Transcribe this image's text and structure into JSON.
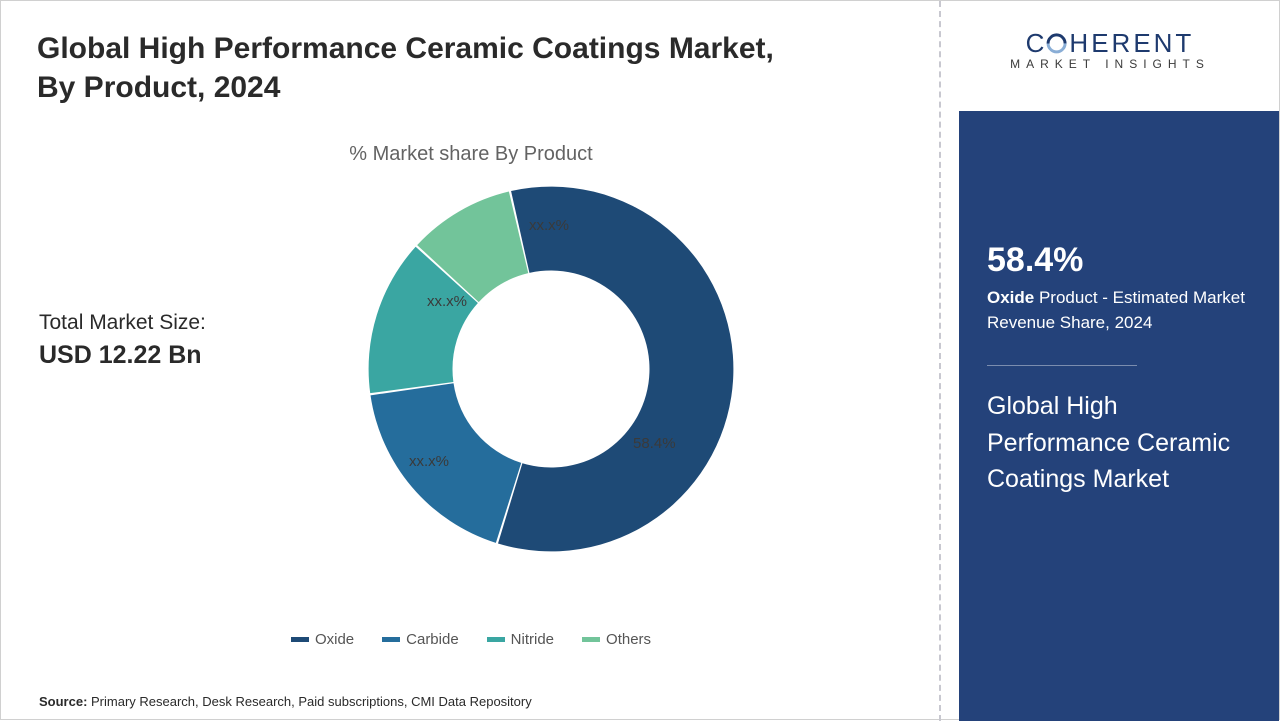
{
  "title": "Global High Performance Ceramic Coatings Market, By Product, 2024",
  "subtitle": "% Market share By Product",
  "marketSizeLabel": "Total Market Size:",
  "marketSizeValue": "USD 12.22 Bn",
  "source": "Primary Research, Desk Research, Paid subscriptions, CMI Data Repository",
  "sourcePrefix": "Source: ",
  "logo": {
    "top": "CHERENT",
    "bottom": "MARKET INSIGHTS"
  },
  "donut": {
    "type": "donut",
    "innerRadiusPct": 0.54,
    "startAngleDeg": -13,
    "bg": "#ffffff",
    "segments": [
      {
        "name": "Oxide",
        "value": 58.4,
        "label": "58.4%",
        "color": "#1e4a76"
      },
      {
        "name": "Carbide",
        "value": 18.0,
        "label": "xx.x%",
        "color": "#256d9c"
      },
      {
        "name": "Nitride",
        "value": 14.0,
        "label": "xx.x%",
        "color": "#3aa6a2"
      },
      {
        "name": "Others",
        "value": 9.6,
        "label": "xx.x%",
        "color": "#72c49a"
      }
    ],
    "labelPositions": [
      {
        "leftPx": 272,
        "topPx": 256
      },
      {
        "leftPx": 48,
        "topPx": 274
      },
      {
        "leftPx": 66,
        "topPx": 114
      },
      {
        "leftPx": 168,
        "topPx": 38
      }
    ],
    "labelFontSize": 15,
    "labelColor": "#3a3a3a",
    "whiteGap": 0.7
  },
  "legend": [
    {
      "label": "Oxide",
      "color": "#1e4a76"
    },
    {
      "label": "Carbide",
      "color": "#256d9c"
    },
    {
      "label": "Nitride",
      "color": "#3aa6a2"
    },
    {
      "label": "Others",
      "color": "#72c49a"
    }
  ],
  "panel": {
    "bg": "#24427a",
    "pct": "58.4%",
    "descBold": "Oxide",
    "descRest": " Product - Estimated Market Revenue Share, 2024",
    "title": "Global High Performance Ceramic Coatings Market"
  }
}
